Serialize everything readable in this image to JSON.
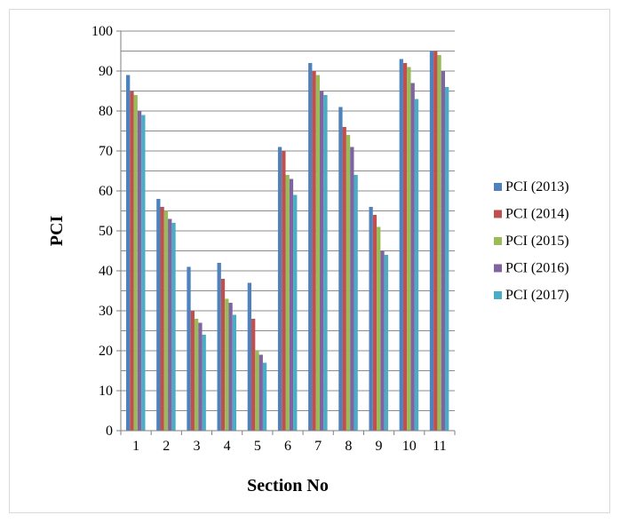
{
  "chart_data": {
    "type": "bar",
    "title": "",
    "xlabel": "Section No",
    "ylabel": "PCI",
    "ylim": [
      0,
      100
    ],
    "ytick_step": 10,
    "grid": "horizontal",
    "legend_position": "right",
    "categories": [
      "1",
      "2",
      "3",
      "4",
      "5",
      "6",
      "7",
      "8",
      "9",
      "10",
      "11"
    ],
    "series": [
      {
        "name": "PCI (2013)",
        "color": "#4f81bd",
        "values": [
          89,
          58,
          41,
          42,
          37,
          71,
          92,
          81,
          56,
          93,
          95
        ]
      },
      {
        "name": "PCI (2014)",
        "color": "#c0504d",
        "values": [
          85,
          56,
          30,
          38,
          28,
          70,
          90,
          76,
          54,
          92,
          95
        ]
      },
      {
        "name": "PCI (2015)",
        "color": "#9bbb59",
        "values": [
          84,
          55,
          28,
          33,
          20,
          64,
          89,
          74,
          51,
          91,
          94
        ]
      },
      {
        "name": "PCI (2016)",
        "color": "#8064a2",
        "values": [
          80,
          53,
          27,
          32,
          19,
          63,
          85,
          71,
          45,
          87,
          90
        ]
      },
      {
        "name": "PCI (2017)",
        "color": "#4bacc6",
        "values": [
          79,
          52,
          24,
          29,
          17,
          59,
          84,
          64,
          44,
          83,
          86
        ]
      }
    ]
  }
}
